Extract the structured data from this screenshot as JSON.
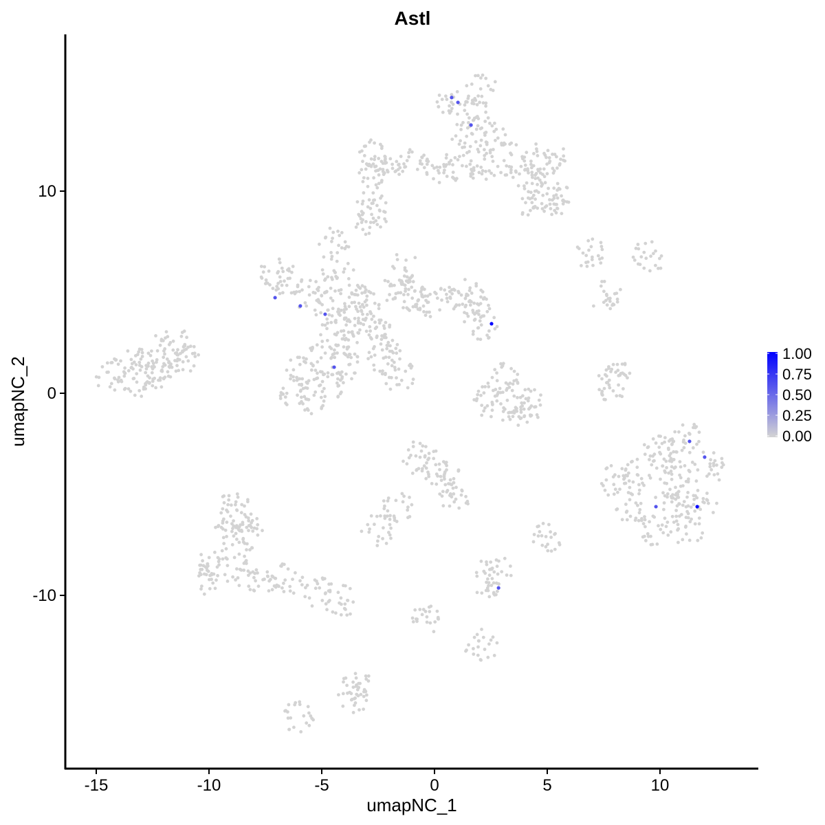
{
  "chart_data": {
    "type": "scatter",
    "title": "Astl",
    "xlabel": "umapNC_1",
    "ylabel": "umapNC_2",
    "xlim": [
      -16.37,
      14.36
    ],
    "ylim": [
      -18.57,
      17.76
    ],
    "xticks": [
      -15,
      -10,
      -5,
      0,
      5,
      10
    ],
    "yticks": [
      -10,
      0,
      10
    ],
    "grid": false,
    "colors": {
      "low": "#D3D3D3",
      "high": "#0000FF"
    },
    "legend": {
      "placement": "right",
      "ticks": [
        "1.00",
        "0.75",
        "0.50",
        "0.25",
        "0.00"
      ],
      "range": [
        0,
        1
      ]
    },
    "background_points": [
      [
        1.77,
        14.0
      ],
      [
        0.85,
        14.35
      ],
      [
        2.07,
        15.0
      ],
      [
        1.46,
        12.65
      ],
      [
        2.68,
        12.65
      ],
      [
        3.29,
        11.6
      ],
      [
        4.51,
        11.6
      ],
      [
        5.12,
        11.6
      ],
      [
        4.2,
        10.6
      ],
      [
        5.12,
        9.9
      ],
      [
        5.43,
        9.6
      ],
      [
        4.51,
        9.25
      ],
      [
        2.07,
        11.3
      ],
      [
        1.16,
        11.3
      ],
      [
        -2.8,
        11.8
      ],
      [
        -2.2,
        11.46
      ],
      [
        -0.98,
        11.3
      ],
      [
        0.24,
        11.2
      ],
      [
        -2.8,
        10.6
      ],
      [
        -2.8,
        9.25
      ],
      [
        -2.87,
        8.64
      ],
      [
        -7.07,
        5.85
      ],
      [
        -6.46,
        5.5
      ],
      [
        -5.55,
        4.83
      ],
      [
        -4.63,
        4.32
      ],
      [
        -3.72,
        3.8
      ],
      [
        -2.8,
        3.13
      ],
      [
        -2.2,
        2.8
      ],
      [
        -3.72,
        4.83
      ],
      [
        -3.1,
        4.5
      ],
      [
        -1.59,
        5.17
      ],
      [
        -1.28,
        6.2
      ],
      [
        -0.98,
        4.83
      ],
      [
        -0.37,
        4.5
      ],
      [
        0.55,
        4.5
      ],
      [
        1.77,
        4.15
      ],
      [
        2.07,
        3.47
      ],
      [
        1.46,
        4.83
      ],
      [
        -4.48,
        7.38
      ],
      [
        -4.3,
        5.85
      ],
      [
        -5.85,
        1.09
      ],
      [
        -6.16,
        0.07
      ],
      [
        -5.55,
        -0.27
      ],
      [
        -4.63,
        0.41
      ],
      [
        -4.02,
        1.43
      ],
      [
        -4.02,
        2.45
      ],
      [
        -4.33,
        3.13
      ],
      [
        -4.94,
        1.77
      ],
      [
        -2.2,
        1.77
      ],
      [
        -1.59,
        0.92
      ],
      [
        -14.4,
        0.92
      ],
      [
        -13.48,
        1.43
      ],
      [
        -12.56,
        1.6
      ],
      [
        -11.65,
        1.77
      ],
      [
        -11.04,
        1.6
      ],
      [
        -13.17,
        0.58
      ],
      [
        -12.26,
        0.92
      ],
      [
        -11.65,
        2.62
      ],
      [
        2.99,
        0.75
      ],
      [
        3.29,
        -0.27
      ],
      [
        2.38,
        -0.44
      ],
      [
        3.6,
        -0.88
      ],
      [
        4.2,
        -0.61
      ],
      [
        7.87,
        0.41
      ],
      [
        8.17,
        0.92
      ],
      [
        10.0,
        -2.65
      ],
      [
        11.22,
        -2.3
      ],
      [
        9.09,
        -4.0
      ],
      [
        10.61,
        -4.0
      ],
      [
        12.13,
        -3.67
      ],
      [
        8.78,
        -5.71
      ],
      [
        10.3,
        -5.71
      ],
      [
        11.83,
        -5.71
      ],
      [
        9.7,
        -6.73
      ],
      [
        11.22,
        -6.73
      ],
      [
        8.02,
        -4.35
      ],
      [
        10.3,
        -3.2
      ],
      [
        11.0,
        -4.8
      ],
      [
        -0.82,
        -3.16
      ],
      [
        -0.06,
        -3.67
      ],
      [
        0.55,
        -4.35
      ],
      [
        0.85,
        -5.03
      ],
      [
        -1.59,
        -5.71
      ],
      [
        -2.5,
        -6.73
      ],
      [
        -8.9,
        -5.71
      ],
      [
        -9.2,
        -7.07
      ],
      [
        -8.29,
        -7.07
      ],
      [
        -9.82,
        -8.44
      ],
      [
        -8.6,
        -8.78
      ],
      [
        -7.68,
        -9.12
      ],
      [
        -6.46,
        -9.12
      ],
      [
        -5.24,
        -9.8
      ],
      [
        -4.17,
        -10.3
      ],
      [
        -10.12,
        -9.12
      ],
      [
        -8.6,
        -6.2
      ],
      [
        2.23,
        -9.46
      ],
      [
        2.68,
        -8.78
      ],
      [
        -0.37,
        -11.16
      ],
      [
        -3.41,
        -14.56
      ],
      [
        -3.57,
        -15.07
      ],
      [
        2.07,
        -12.5
      ],
      [
        4.97,
        -7.24
      ],
      [
        -6.0,
        -16.0
      ],
      [
        9.54,
        6.8
      ],
      [
        6.95,
        6.94
      ],
      [
        7.6,
        4.83
      ]
    ],
    "expressed_points": [
      {
        "x": 0.76,
        "y": 14.63,
        "value": 0.6
      },
      {
        "x": 1.04,
        "y": 14.39,
        "value": 0.6
      },
      {
        "x": 1.62,
        "y": 13.27,
        "value": 0.6
      },
      {
        "x": 2.53,
        "y": 3.44,
        "value": 1.0
      },
      {
        "x": -7.07,
        "y": 4.73,
        "value": 0.6
      },
      {
        "x": -5.95,
        "y": 4.32,
        "value": 0.6
      },
      {
        "x": -4.85,
        "y": 3.91,
        "value": 0.6
      },
      {
        "x": -4.45,
        "y": 1.29,
        "value": 0.6
      },
      {
        "x": 11.31,
        "y": -2.38,
        "value": 0.6
      },
      {
        "x": 11.98,
        "y": -3.16,
        "value": 0.6
      },
      {
        "x": 9.82,
        "y": -5.61,
        "value": 0.6
      },
      {
        "x": 11.65,
        "y": -5.61,
        "value": 1.0
      },
      {
        "x": 2.84,
        "y": -9.63,
        "value": 0.6
      }
    ]
  }
}
